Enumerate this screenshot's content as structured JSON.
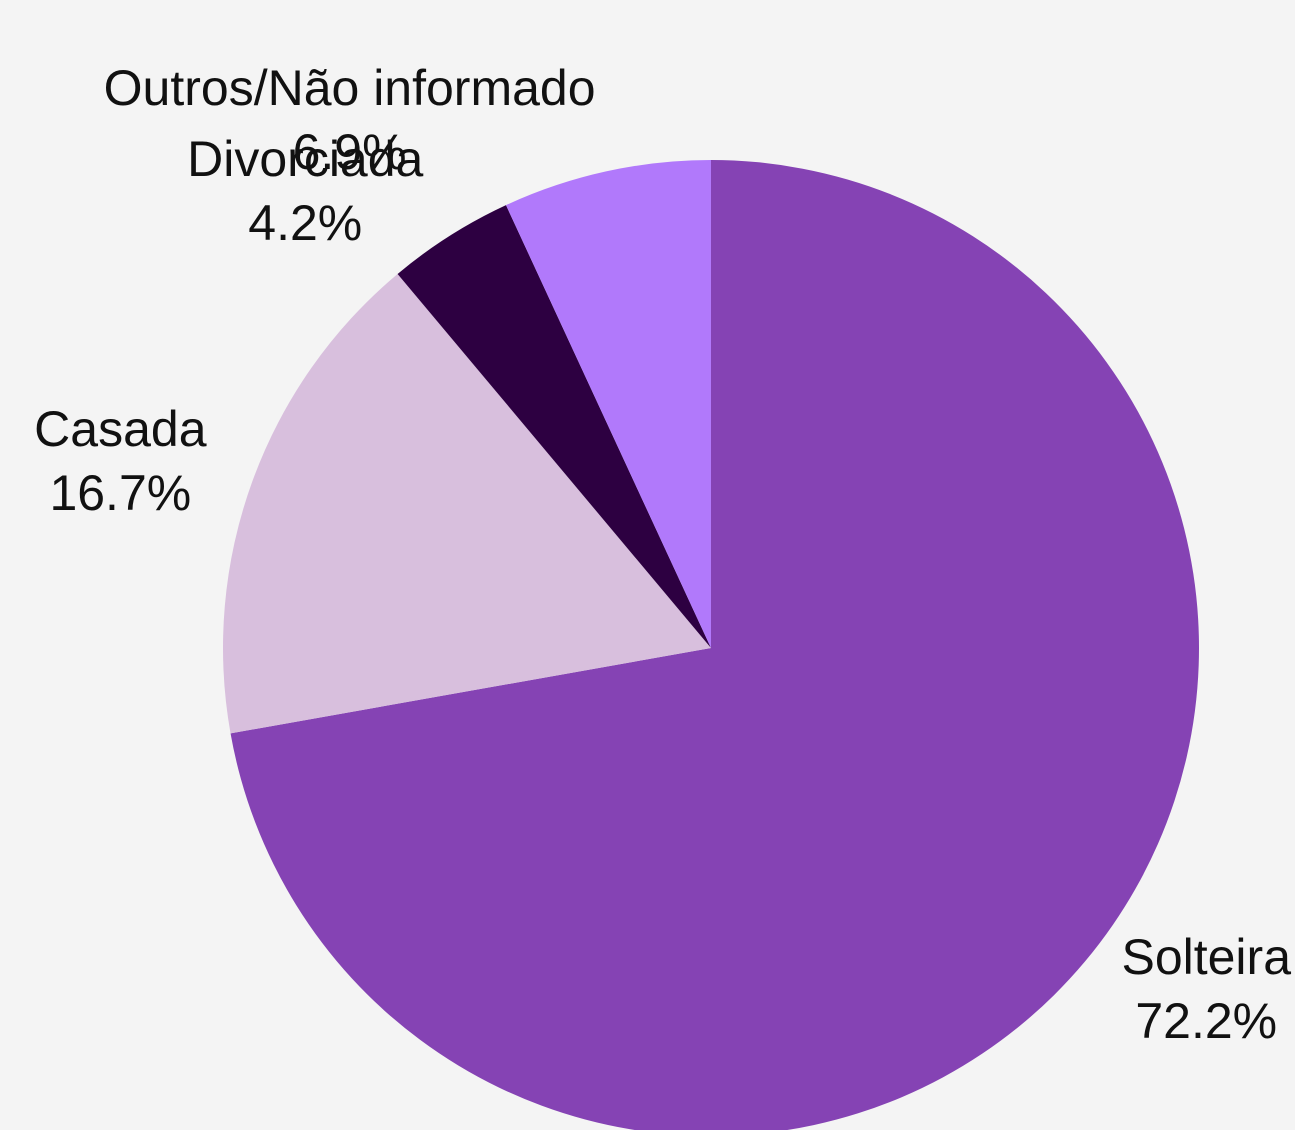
{
  "chart_data": {
    "type": "pie",
    "categories": [
      "Solteira",
      "Casada",
      "Divorciada",
      "Outros/Não informado"
    ],
    "values": [
      72.2,
      16.7,
      4.2,
      6.9
    ],
    "value_labels": [
      "72.2%",
      "16.7%",
      "4.2%",
      "6.9%"
    ],
    "colors": [
      "#8543b4",
      "#d8bfdd",
      "#2d0041",
      "#b179fb"
    ]
  }
}
